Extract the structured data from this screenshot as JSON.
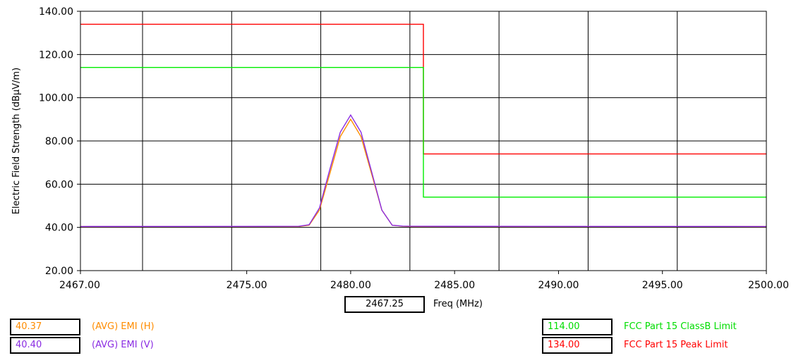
{
  "chart_data": {
    "type": "line",
    "title": "",
    "xlabel": "Freq (MHz)",
    "ylabel": "Electric Field Strength (dBµV/m)",
    "xlim": [
      2467,
      2500
    ],
    "ylim": [
      20,
      140
    ],
    "x_ticks": [
      2467,
      2475,
      2480,
      2485,
      2490,
      2495,
      2500
    ],
    "y_ticks": [
      20,
      40,
      60,
      80,
      100,
      120,
      140
    ],
    "grid": true,
    "series": [
      {
        "name": "FCC Part 15 Peak Limit",
        "color": "#ff0000",
        "x": [
          2467,
          2483.5,
          2483.5,
          2500
        ],
        "y": [
          134,
          134,
          74,
          74
        ]
      },
      {
        "name": "FCC Part 15 ClassB Limit",
        "color": "#00ee00",
        "x": [
          2467,
          2483.5,
          2483.5,
          2500
        ],
        "y": [
          114,
          114,
          54,
          54
        ]
      },
      {
        "name": "(AVG) EMI (H)",
        "color": "#ff8c00",
        "x": [
          2467,
          2477.5,
          2478,
          2478.5,
          2479,
          2479.5,
          2480,
          2480.5,
          2481,
          2481.5,
          2482,
          2482.5,
          2483,
          2500
        ],
        "y": [
          40.37,
          40.4,
          41,
          48,
          65,
          82,
          90,
          82,
          65,
          48,
          41,
          40.5,
          40.4,
          40.37
        ]
      },
      {
        "name": "(AVG) EMI (V)",
        "color": "#8a2be2",
        "x": [
          2467,
          2477.5,
          2478,
          2478.5,
          2479,
          2479.5,
          2480,
          2480.5,
          2481,
          2481.5,
          2482,
          2482.5,
          2483,
          2500
        ],
        "y": [
          40.4,
          40.5,
          41.2,
          49,
          67,
          84,
          92,
          84,
          66,
          48,
          41,
          40.6,
          40.5,
          40.4
        ]
      }
    ]
  },
  "cursor": {
    "freq_value": "2467.25"
  },
  "legend": {
    "left": [
      {
        "value": "40.37",
        "label": "(AVG) EMI (H)",
        "color": "#ff8c00"
      },
      {
        "value": "40.40",
        "label": "(AVG) EMI (V)",
        "color": "#8a2be2"
      }
    ],
    "right": [
      {
        "value": "114.00",
        "label": "FCC Part 15 ClassB Limit",
        "color": "#00dd00"
      },
      {
        "value": "134.00",
        "label": "FCC Part 15 Peak Limit",
        "color": "#ff0000"
      }
    ]
  }
}
